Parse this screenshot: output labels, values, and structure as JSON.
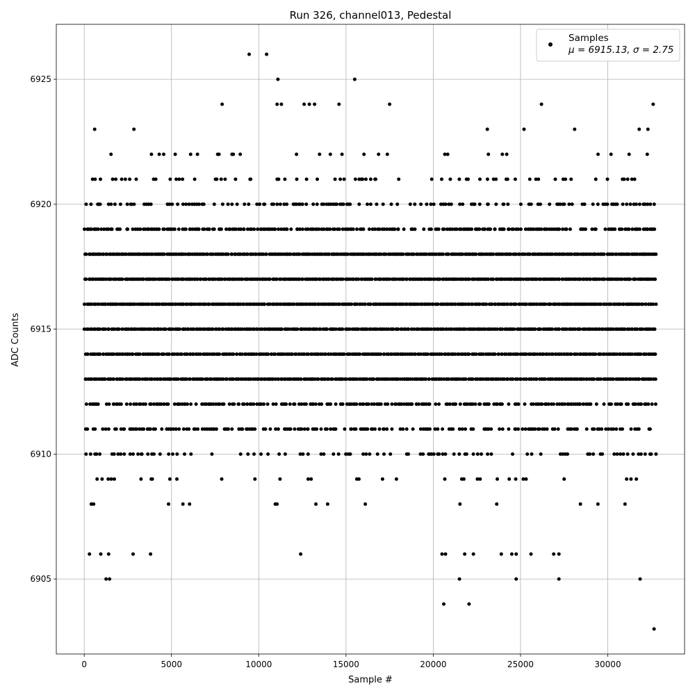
{
  "chart_data": {
    "type": "scatter",
    "title": "Run 326, channel013, Pedestal",
    "xlabel": "Sample #",
    "ylabel": "ADC Counts",
    "xlim": [
      -1600,
      34400
    ],
    "ylim": [
      6902.0,
      6927.2
    ],
    "xticks": [
      0,
      5000,
      10000,
      15000,
      20000,
      25000,
      30000
    ],
    "xtick_labels": [
      "0",
      "5000",
      "10000",
      "15000",
      "20000",
      "25000",
      "30000"
    ],
    "yticks": [
      6905,
      6910,
      6915,
      6920,
      6925
    ],
    "ytick_labels": [
      "6905",
      "6910",
      "6915",
      "6920",
      "6925"
    ],
    "grid": true,
    "legend": {
      "placement": "top-right",
      "entries": [
        "Samples",
        "μ = 6915.13, σ = 2.75"
      ]
    },
    "marker_color": "#000000",
    "series": [
      {
        "name": "Samples",
        "x_start": 0,
        "x_end": 32767,
        "band_values": [
          6903,
          6904,
          6905,
          6906,
          6907,
          6908,
          6909,
          6910,
          6911,
          6912,
          6913,
          6914,
          6915,
          6916,
          6917,
          6918,
          6919,
          6920,
          6921,
          6922,
          6923,
          6924,
          6925,
          6926
        ],
        "band_relative_density": [
          0.0005,
          0.001,
          0.002,
          0.006,
          0.02,
          0.05,
          0.12,
          0.3,
          0.5,
          0.7,
          1.0,
          1.0,
          1.0,
          1.0,
          1.0,
          1.0,
          0.75,
          0.4,
          0.2,
          0.08,
          0.02,
          0.006,
          0.002,
          0.001
        ],
        "isolated_points": [
          {
            "x": 9450,
            "y": 6926
          },
          {
            "x": 10450,
            "y": 6926
          },
          {
            "x": 11100,
            "y": 6925
          },
          {
            "x": 15500,
            "y": 6925
          },
          {
            "x": 7900,
            "y": 6924
          },
          {
            "x": 11050,
            "y": 6924
          },
          {
            "x": 11300,
            "y": 6924
          },
          {
            "x": 12600,
            "y": 6924
          },
          {
            "x": 12900,
            "y": 6924
          },
          {
            "x": 13200,
            "y": 6924
          },
          {
            "x": 14600,
            "y": 6924
          },
          {
            "x": 17500,
            "y": 6924
          },
          {
            "x": 26200,
            "y": 6924
          },
          {
            "x": 32600,
            "y": 6924
          },
          {
            "x": 600,
            "y": 6923
          },
          {
            "x": 2850,
            "y": 6923
          },
          {
            "x": 23100,
            "y": 6923
          },
          {
            "x": 25200,
            "y": 6923
          },
          {
            "x": 28100,
            "y": 6923
          },
          {
            "x": 31800,
            "y": 6923
          },
          {
            "x": 32300,
            "y": 6923
          },
          {
            "x": 1250,
            "y": 6905
          },
          {
            "x": 1450,
            "y": 6905
          },
          {
            "x": 21500,
            "y": 6905
          },
          {
            "x": 24750,
            "y": 6905
          },
          {
            "x": 27200,
            "y": 6905
          },
          {
            "x": 31850,
            "y": 6905
          },
          {
            "x": 20600,
            "y": 6904
          },
          {
            "x": 22050,
            "y": 6904
          },
          {
            "x": 32650,
            "y": 6903
          },
          {
            "x": 300,
            "y": 6906
          },
          {
            "x": 950,
            "y": 6906
          },
          {
            "x": 1400,
            "y": 6906
          },
          {
            "x": 2800,
            "y": 6906
          },
          {
            "x": 3800,
            "y": 6906
          },
          {
            "x": 12400,
            "y": 6906
          },
          {
            "x": 20500,
            "y": 6906
          },
          {
            "x": 20700,
            "y": 6906
          },
          {
            "x": 21800,
            "y": 6906
          },
          {
            "x": 22300,
            "y": 6906
          },
          {
            "x": 23900,
            "y": 6906
          },
          {
            "x": 24500,
            "y": 6906
          },
          {
            "x": 24750,
            "y": 6906
          },
          {
            "x": 25600,
            "y": 6906
          },
          {
            "x": 26900,
            "y": 6906
          },
          {
            "x": 27200,
            "y": 6906
          }
        ]
      }
    ]
  }
}
